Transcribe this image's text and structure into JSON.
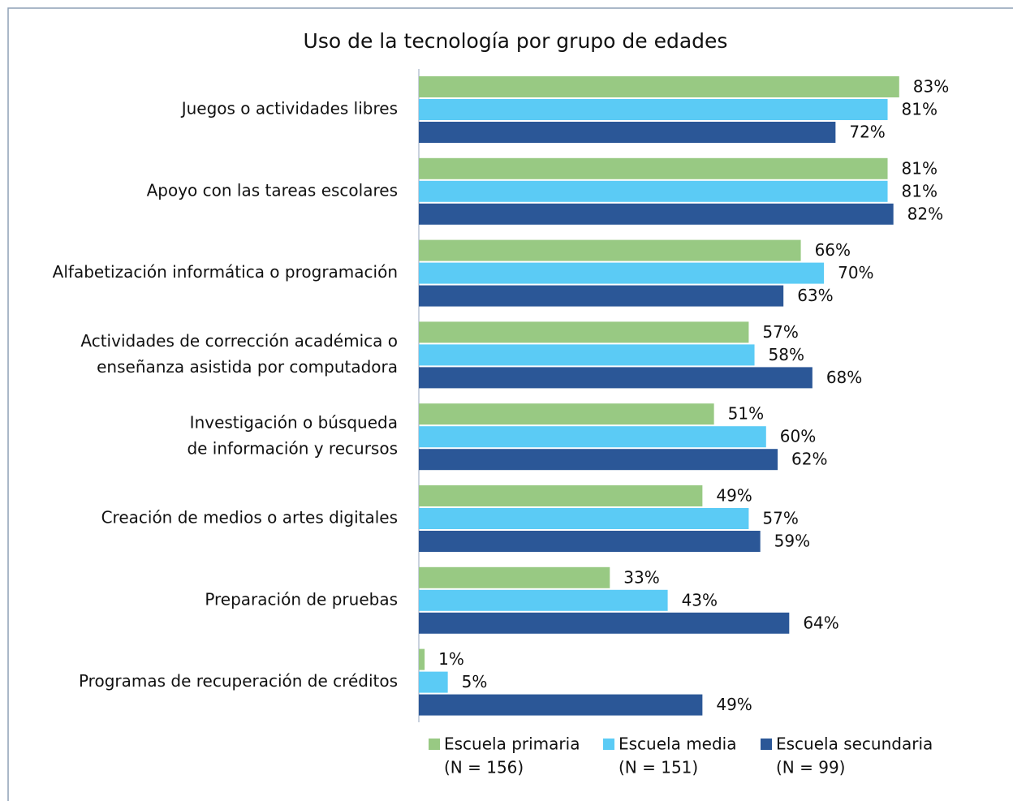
{
  "chart_data": {
    "type": "barh",
    "title": "Uso de la tecnología por grupo de edades",
    "categories": [
      [
        "Juegos o actividades libres"
      ],
      [
        "Apoyo con las tareas escolares"
      ],
      [
        "Alfabetización informática o programación"
      ],
      [
        "Actividades de corrección académica o",
        "enseñanza asistida por computadora"
      ],
      [
        "Investigación o búsqueda",
        "de información y recursos"
      ],
      [
        "Creación de medios o artes digitales"
      ],
      [
        "Preparación de pruebas"
      ],
      [
        "Programas de recuperación de créditos"
      ]
    ],
    "xlim": [
      0,
      100
    ],
    "series": [
      {
        "name": "Escuela primaria",
        "sample": "(N = 156)",
        "color": "#98c983",
        "values": [
          83,
          81,
          66,
          57,
          51,
          49,
          33,
          1
        ],
        "value_labels": [
          "83%",
          "81%",
          "66%",
          "57%",
          "51%",
          "49%",
          "33%",
          "1%"
        ]
      },
      {
        "name": "Escuela media",
        "sample": "(N = 151)",
        "color": "#5bcbf5",
        "values": [
          81,
          81,
          70,
          58,
          60,
          57,
          43,
          5
        ],
        "value_labels": [
          "81%",
          "81%",
          "70%",
          "58%",
          "60%",
          "57%",
          "43%",
          "5%"
        ]
      },
      {
        "name": "Escuela secundaria",
        "sample": "(N = 99)",
        "color": "#2b5797",
        "values": [
          72,
          82,
          63,
          68,
          62,
          59,
          64,
          49
        ],
        "value_labels": [
          "72%",
          "82%",
          "63%",
          "68%",
          "62%",
          "59%",
          "64%",
          "49%"
        ]
      }
    ]
  }
}
